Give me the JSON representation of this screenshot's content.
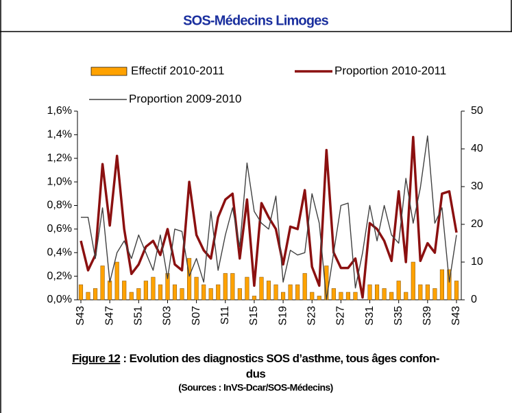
{
  "header": "SOS-Médecins Limoges",
  "chart_data": {
    "type": "bar_line",
    "categories": [
      "S43",
      null,
      null,
      null,
      "S47",
      null,
      null,
      null,
      "S51",
      null,
      null,
      null,
      "S03",
      null,
      null,
      null,
      "S07",
      null,
      null,
      null,
      "S11",
      null,
      null,
      null,
      "S15",
      null,
      null,
      null,
      "S19",
      null,
      null,
      null,
      "S23",
      null,
      null,
      null,
      "S27",
      null,
      null,
      null,
      "S31",
      null,
      null,
      null,
      "S35",
      null,
      null,
      null,
      "S39",
      null,
      null,
      null,
      "S43"
    ],
    "series": [
      {
        "name": "Effectif 2010-2011",
        "type": "bar",
        "axis": "y2",
        "color": "#ffa200",
        "values": [
          4,
          2,
          3,
          9,
          5,
          10,
          5,
          2,
          3,
          5,
          6,
          4,
          7,
          4,
          3,
          11,
          6,
          4,
          3,
          4,
          7,
          7,
          3,
          6,
          1,
          6,
          5,
          4,
          2,
          4,
          4,
          7,
          2,
          1,
          9,
          3,
          2,
          2,
          2,
          0,
          4,
          4,
          3,
          2,
          5,
          2,
          10,
          4,
          4,
          3,
          8,
          8,
          5
        ]
      },
      {
        "name": "Proportion 2010-2011",
        "type": "line",
        "axis": "y",
        "color": "#8b1010",
        "values": [
          0.5,
          0.25,
          0.38,
          1.15,
          0.63,
          1.22,
          0.6,
          0.22,
          0.3,
          0.45,
          0.5,
          0.38,
          0.6,
          0.3,
          0.25,
          1.0,
          0.55,
          0.42,
          0.35,
          0.7,
          0.85,
          0.9,
          0.35,
          0.85,
          0.12,
          0.82,
          0.7,
          0.6,
          0.3,
          0.62,
          0.6,
          0.93,
          0.28,
          0.12,
          1.27,
          0.4,
          0.27,
          0.27,
          0.35,
          0.02,
          0.65,
          0.6,
          0.5,
          0.33,
          0.92,
          0.32,
          1.38,
          0.33,
          0.48,
          0.4,
          0.9,
          0.92,
          0.57
        ]
      },
      {
        "name": "Proportion 2009-2010",
        "type": "line",
        "axis": "y",
        "color": "#404040",
        "values": [
          0.7,
          0.7,
          0.35,
          0.78,
          0.15,
          0.4,
          0.5,
          0.35,
          0.55,
          0.4,
          0.25,
          0.55,
          0.18,
          0.6,
          0.58,
          0.2,
          0.35,
          0.15,
          0.75,
          0.25,
          0.55,
          0.78,
          0.45,
          1.16,
          0.75,
          0.65,
          0.6,
          0.88,
          0.15,
          0.42,
          0.38,
          0.4,
          0.9,
          0.65,
          0.0,
          0.4,
          0.8,
          0.82,
          0.1,
          0.4,
          0.8,
          0.5,
          0.8,
          0.55,
          0.48,
          1.03,
          0.65,
          0.95,
          1.39,
          0.65,
          0.78,
          0.15,
          0.55
        ]
      }
    ],
    "ylim": [
      0,
      1.6
    ],
    "yticks": [
      {
        "value": 0,
        "label": "0,0%"
      },
      {
        "value": 0.2,
        "label": "0,2%"
      },
      {
        "value": 0.4,
        "label": "0,4%"
      },
      {
        "value": 0.6,
        "label": "0,6%"
      },
      {
        "value": 0.8,
        "label": "0,8%"
      },
      {
        "value": 1.0,
        "label": "1,0%"
      },
      {
        "value": 1.2,
        "label": "1,2%"
      },
      {
        "value": 1.4,
        "label": "1,4%"
      },
      {
        "value": 1.6,
        "label": "1,6%"
      }
    ],
    "y2lim": [
      0,
      50
    ],
    "y2ticks": [
      0,
      10,
      20,
      30,
      40,
      50
    ],
    "grid": false
  },
  "caption": {
    "figure": "Figure 12",
    "lines": [
      " : Evolution des diagnostics SOS d’asthme, tous âges confon-",
      "dus"
    ],
    "source": "(Sources : InVS-Dcar/SOS-Médecins)"
  }
}
